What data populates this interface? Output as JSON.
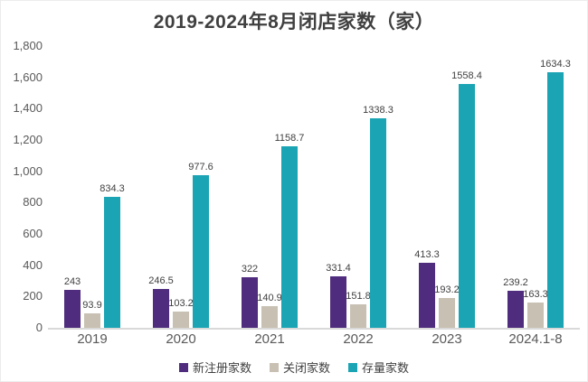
{
  "chart_data": {
    "type": "bar",
    "title": "2019-2024年8月闭店家数（家）",
    "categories": [
      "2019",
      "2020",
      "2021",
      "2022",
      "2023",
      "2024.1-8"
    ],
    "series": [
      {
        "name": "新注册家数",
        "color": "#4F2C7E",
        "values": [
          243,
          246.5,
          322,
          331.4,
          413.3,
          239.2
        ]
      },
      {
        "name": "关闭家数",
        "color": "#C8C0B2",
        "values": [
          93.9,
          103.2,
          140.9,
          151.8,
          193.2,
          163.3
        ]
      },
      {
        "name": "存量家数",
        "color": "#1BA5B4",
        "values": [
          834.3,
          977.6,
          1158.7,
          1338.3,
          1558.4,
          1634.3
        ]
      }
    ],
    "ylim": [
      0,
      1800
    ],
    "ytick_step": 200,
    "ytick_labels": [
      "0",
      "200",
      "400",
      "600",
      "800",
      "1,000",
      "1,200",
      "1,400",
      "1,600",
      "1,800"
    ],
    "grid": false,
    "legend_position": "bottom",
    "value_labels_shown": true
  },
  "style": {
    "title_color": "#404040",
    "axis_text_color": "#595959",
    "value_label_color": "#404040",
    "axis_line_color": "#D9D9D9",
    "background": "#FFFFFF"
  }
}
